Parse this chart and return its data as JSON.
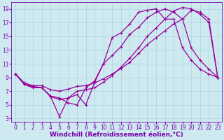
{
  "background_color": "#cee9f0",
  "grid_color": "#b0d8e0",
  "line_color": "#990099",
  "xlabel": "Windchill (Refroidissement éolien,°C)",
  "xlabel_color": "#7700aa",
  "xlabel_fontsize": 6.5,
  "tick_color": "#7700aa",
  "tick_fontsize": 5.5,
  "xlim": [
    -0.5,
    23.5
  ],
  "ylim": [
    2.5,
    20
  ],
  "xticks": [
    0,
    1,
    2,
    3,
    4,
    5,
    6,
    7,
    8,
    9,
    10,
    11,
    12,
    13,
    14,
    15,
    16,
    17,
    18,
    19,
    20,
    21,
    22,
    23
  ],
  "yticks": [
    3,
    5,
    7,
    9,
    11,
    13,
    15,
    17,
    19
  ],
  "series1_x": [
    0,
    1,
    2,
    3,
    4,
    5,
    6,
    7,
    8,
    9,
    10,
    11,
    12,
    13,
    14,
    15,
    16,
    17,
    18,
    19,
    20,
    21,
    22,
    23
  ],
  "series1_y": [
    9.5,
    8.0,
    7.5,
    7.5,
    6.2,
    3.3,
    6.0,
    6.5,
    5.0,
    8.3,
    11.0,
    14.8,
    15.5,
    16.8,
    18.5,
    18.8,
    19.0,
    17.5,
    17.5,
    13.3,
    11.5,
    10.2,
    9.5,
    9.0
  ],
  "series2_x": [
    0,
    1,
    2,
    3,
    4,
    5,
    6,
    7,
    8,
    9,
    10,
    11,
    12,
    13,
    14,
    15,
    16,
    17,
    18,
    19,
    20,
    21,
    22,
    23
  ],
  "series2_y": [
    9.5,
    8.0,
    7.7,
    7.5,
    6.3,
    6.0,
    5.3,
    5.0,
    7.5,
    8.5,
    11.0,
    12.2,
    13.5,
    15.3,
    16.3,
    17.7,
    18.5,
    19.0,
    18.5,
    17.5,
    13.3,
    11.5,
    10.2,
    9.0
  ],
  "series3_x": [
    0,
    1,
    2,
    3,
    4,
    5,
    6,
    7,
    8,
    9,
    10,
    11,
    12,
    13,
    14,
    15,
    16,
    17,
    18,
    19,
    20,
    21,
    22,
    23
  ],
  "series3_y": [
    9.5,
    8.2,
    7.8,
    7.8,
    7.2,
    7.0,
    7.3,
    7.7,
    7.8,
    8.2,
    8.8,
    9.5,
    10.3,
    11.2,
    12.5,
    13.8,
    14.8,
    15.8,
    16.8,
    17.5,
    18.8,
    18.5,
    17.5,
    9.0
  ],
  "series4_x": [
    0,
    1,
    2,
    3,
    4,
    5,
    6,
    7,
    8,
    9,
    10,
    11,
    12,
    13,
    14,
    15,
    16,
    17,
    18,
    19,
    20,
    21,
    22,
    23
  ],
  "series4_y": [
    9.5,
    8.0,
    7.5,
    7.5,
    6.2,
    5.8,
    6.0,
    7.0,
    7.2,
    7.5,
    8.3,
    9.3,
    10.5,
    11.8,
    13.3,
    15.0,
    16.2,
    17.5,
    18.7,
    19.2,
    19.0,
    18.2,
    17.0,
    9.0
  ],
  "marker": "+"
}
